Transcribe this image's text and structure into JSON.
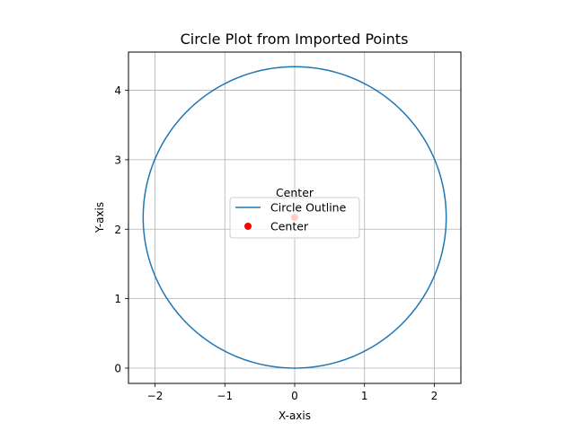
{
  "chart_data": {
    "type": "line",
    "title": "Circle Plot from Imported Points",
    "xlabel": "X-axis",
    "ylabel": "Y-axis",
    "xlim": [
      -2.38,
      2.38
    ],
    "ylim": [
      -0.22,
      4.55
    ],
    "xticks": [
      -2,
      -1,
      0,
      1,
      2
    ],
    "yticks": [
      0,
      1,
      2,
      3,
      4
    ],
    "grid": true,
    "legend_position": "center",
    "circle": {
      "center_x": 0,
      "center_y": 2.17,
      "radius": 2.17
    },
    "series": [
      {
        "name": "Circle Outline",
        "kind": "line",
        "color": "#1f77b4"
      },
      {
        "name": "Center",
        "kind": "point",
        "color": "#ff0000",
        "x": 0,
        "y": 2.17
      }
    ],
    "annotations": [
      {
        "text": "Center",
        "x": 0,
        "y": 2.17
      }
    ]
  }
}
